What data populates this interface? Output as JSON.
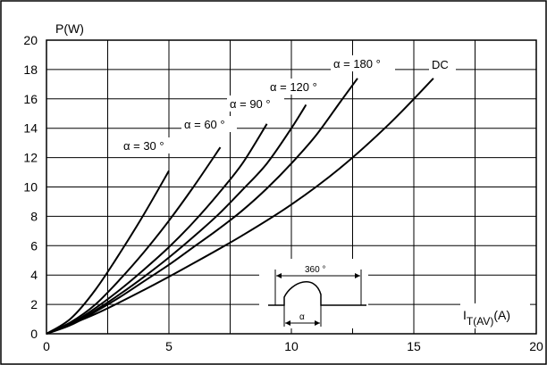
{
  "chart_data": {
    "type": "line",
    "title": "",
    "ylabel": "P(W)",
    "xlabel_main": "I",
    "xlabel_sub": "T(AV)",
    "xlabel_unit": "(A)",
    "xlim": [
      0,
      20
    ],
    "ylim": [
      0,
      20
    ],
    "x_ticks": [
      0,
      5,
      10,
      15,
      20
    ],
    "y_ticks": [
      0,
      2,
      4,
      6,
      8,
      10,
      12,
      14,
      16,
      18,
      20
    ],
    "grid": true,
    "series": [
      {
        "name": "α = 30 °",
        "x": [
          0,
          1,
          2,
          3,
          4,
          5
        ],
        "y": [
          0,
          1.05,
          3.0,
          5.5,
          8.2,
          11.1
        ]
      },
      {
        "name": "α = 60 °",
        "x": [
          0,
          1,
          2,
          3,
          4,
          5,
          6,
          7.1
        ],
        "y": [
          0,
          0.8,
          2.0,
          3.7,
          5.6,
          7.7,
          10.0,
          12.7
        ]
      },
      {
        "name": "α = 90 °",
        "x": [
          0,
          1,
          2,
          3,
          4,
          5,
          6,
          7,
          8,
          9
        ],
        "y": [
          0,
          0.7,
          1.75,
          3.0,
          4.4,
          5.9,
          7.6,
          9.5,
          11.6,
          14.3
        ]
      },
      {
        "name": "α = 120 °",
        "x": [
          0,
          1,
          2,
          3,
          4,
          5,
          6,
          7,
          8,
          9,
          10,
          10.6
        ],
        "y": [
          0,
          0.65,
          1.6,
          2.7,
          3.9,
          5.2,
          6.6,
          8.1,
          9.8,
          11.6,
          14.0,
          15.6
        ]
      },
      {
        "name": "α = 180 °",
        "x": [
          0,
          1,
          2,
          3,
          4,
          5,
          6,
          7,
          8,
          9,
          10,
          11,
          12,
          12.7
        ],
        "y": [
          0,
          0.6,
          1.5,
          2.5,
          3.6,
          4.7,
          5.9,
          7.1,
          8.4,
          9.9,
          11.6,
          13.5,
          15.8,
          17.4
        ]
      },
      {
        "name": "DC",
        "x": [
          0,
          2,
          4,
          6,
          8,
          10,
          12,
          14,
          15.8
        ],
        "y": [
          0,
          1.35,
          3.0,
          4.8,
          6.7,
          8.8,
          11.3,
          14.3,
          17.4
        ]
      }
    ],
    "inset": {
      "top_label": "360 °",
      "bottom_label": "α"
    }
  }
}
